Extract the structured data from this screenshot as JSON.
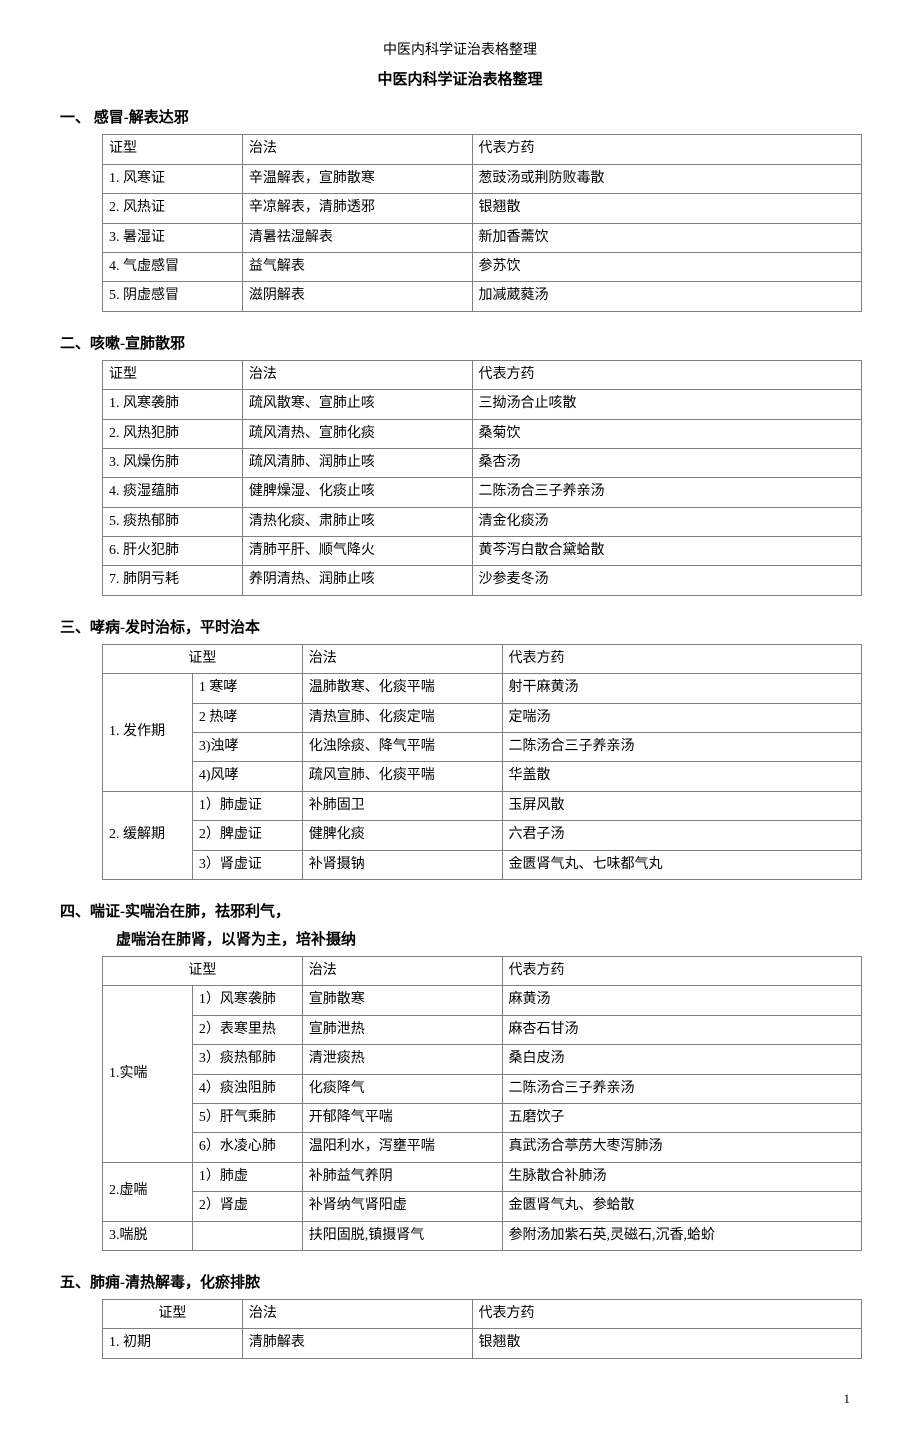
{
  "page": {
    "header": "中医内科学证治表格整理",
    "title": "中医内科学证治表格整理",
    "pageNumber": "1"
  },
  "columns": {
    "syndrome": "证型",
    "treatment": "治法",
    "formula": "代表方药"
  },
  "section1": {
    "heading": "一、 感冒-解表达邪",
    "rows": [
      {
        "s": "1. 风寒证",
        "t": "辛温解表，宣肺散寒",
        "f": "葱豉汤或荆防败毒散"
      },
      {
        "s": "2. 风热证",
        "t": "辛凉解表，清肺透邪",
        "f": "银翘散"
      },
      {
        "s": "3. 暑湿证",
        "t": "清暑祛湿解表",
        "f": "新加香薷饮"
      },
      {
        "s": "4. 气虚感冒",
        "t": "益气解表",
        "f": "参苏饮"
      },
      {
        "s": "5. 阴虚感冒",
        "t": "滋阴解表",
        "f": "加减葳蕤汤"
      }
    ]
  },
  "section2": {
    "heading": "二、咳嗽-宣肺散邪",
    "rows": [
      {
        "s": "1. 风寒袭肺",
        "t": "疏风散寒、宣肺止咳",
        "f": "三拗汤合止咳散"
      },
      {
        "s": "2. 风热犯肺",
        "t": "疏风清热、宣肺化痰",
        "f": "桑菊饮"
      },
      {
        "s": "3. 风燥伤肺",
        "t": "疏风清肺、润肺止咳",
        "f": "桑杏汤"
      },
      {
        "s": "4. 痰湿蕴肺",
        "t": "健脾燥湿、化痰止咳",
        "f": "二陈汤合三子养亲汤"
      },
      {
        "s": "5. 痰热郁肺",
        "t": "清热化痰、肃肺止咳",
        "f": "清金化痰汤"
      },
      {
        "s": "6. 肝火犯肺",
        "t": "清肺平肝、顺气降火",
        "f": "黄芩泻白散合黛蛤散"
      },
      {
        "s": "7. 肺阴亏耗",
        "t": "养阴清热、润肺止咳",
        "f": "沙参麦冬汤"
      }
    ]
  },
  "section3": {
    "heading": "三、哮病-发时治标，平时治本",
    "group1": {
      "label": "1. 发作期",
      "rows": [
        {
          "s": "1 寒哮",
          "t": "温肺散寒、化痰平喘",
          "f": "射干麻黄汤"
        },
        {
          "s": "2 热哮",
          "t": "清热宣肺、化痰定喘",
          "f": "定喘汤"
        },
        {
          "s": "3)浊哮",
          "t": "化浊除痰、降气平喘",
          "f": "二陈汤合三子养亲汤"
        },
        {
          "s": "4)风哮",
          "t": "疏风宣肺、化痰平喘",
          "f": "华盖散"
        }
      ]
    },
    "group2": {
      "label": "2. 缓解期",
      "rows": [
        {
          "s": "1）肺虚证",
          "t": "补肺固卫",
          "f": "玉屏风散"
        },
        {
          "s": "2）脾虚证",
          "t": "健脾化痰",
          "f": "六君子汤"
        },
        {
          "s": "3）肾虚证",
          "t": "补肾摄钠",
          "f": "金匮肾气丸、七味都气丸"
        }
      ]
    }
  },
  "section4": {
    "heading": "四、喘证-实喘治在肺，祛邪利气，",
    "subheading": "虚喘治在肺肾，以肾为主，培补摄纳",
    "group1": {
      "label": "1.实喘",
      "rows": [
        {
          "s": "1）风寒袭肺",
          "t": "宣肺散寒",
          "f": "麻黄汤"
        },
        {
          "s": "2）表寒里热",
          "t": "宣肺泄热",
          "f": "麻杏石甘汤"
        },
        {
          "s": "3）痰热郁肺",
          "t": "清泄痰热",
          "f": "桑白皮汤"
        },
        {
          "s": "4）痰浊阻肺",
          "t": "化痰降气",
          "f": "二陈汤合三子养亲汤"
        },
        {
          "s": "5）肝气乘肺",
          "t": "开郁降气平喘",
          "f": "五磨饮子"
        },
        {
          "s": "6）水凌心肺",
          "t": "温阳利水，泻壅平喘",
          "f": "真武汤合葶苈大枣泻肺汤"
        }
      ]
    },
    "group2": {
      "label": "2.虚喘",
      "rows": [
        {
          "s": "1）肺虚",
          "t": "补肺益气养阴",
          "f": "生脉散合补肺汤"
        },
        {
          "s": "2）肾虚",
          "t": "补肾纳气肾阳虚",
          "f": "金匮肾气丸、参蛤散"
        }
      ]
    },
    "group3": {
      "label": "3.喘脱",
      "rows": [
        {
          "s": "",
          "t": "扶阳固脱,镇摄肾气",
          "f": "参附汤加紫石英,灵磁石,沉香,蛤蚧"
        }
      ]
    }
  },
  "section5": {
    "heading": "五、肺痈-清热解毒，化瘀排脓",
    "rows": [
      {
        "s": "1. 初期",
        "t": "清肺解表",
        "f": "银翘散"
      }
    ]
  }
}
